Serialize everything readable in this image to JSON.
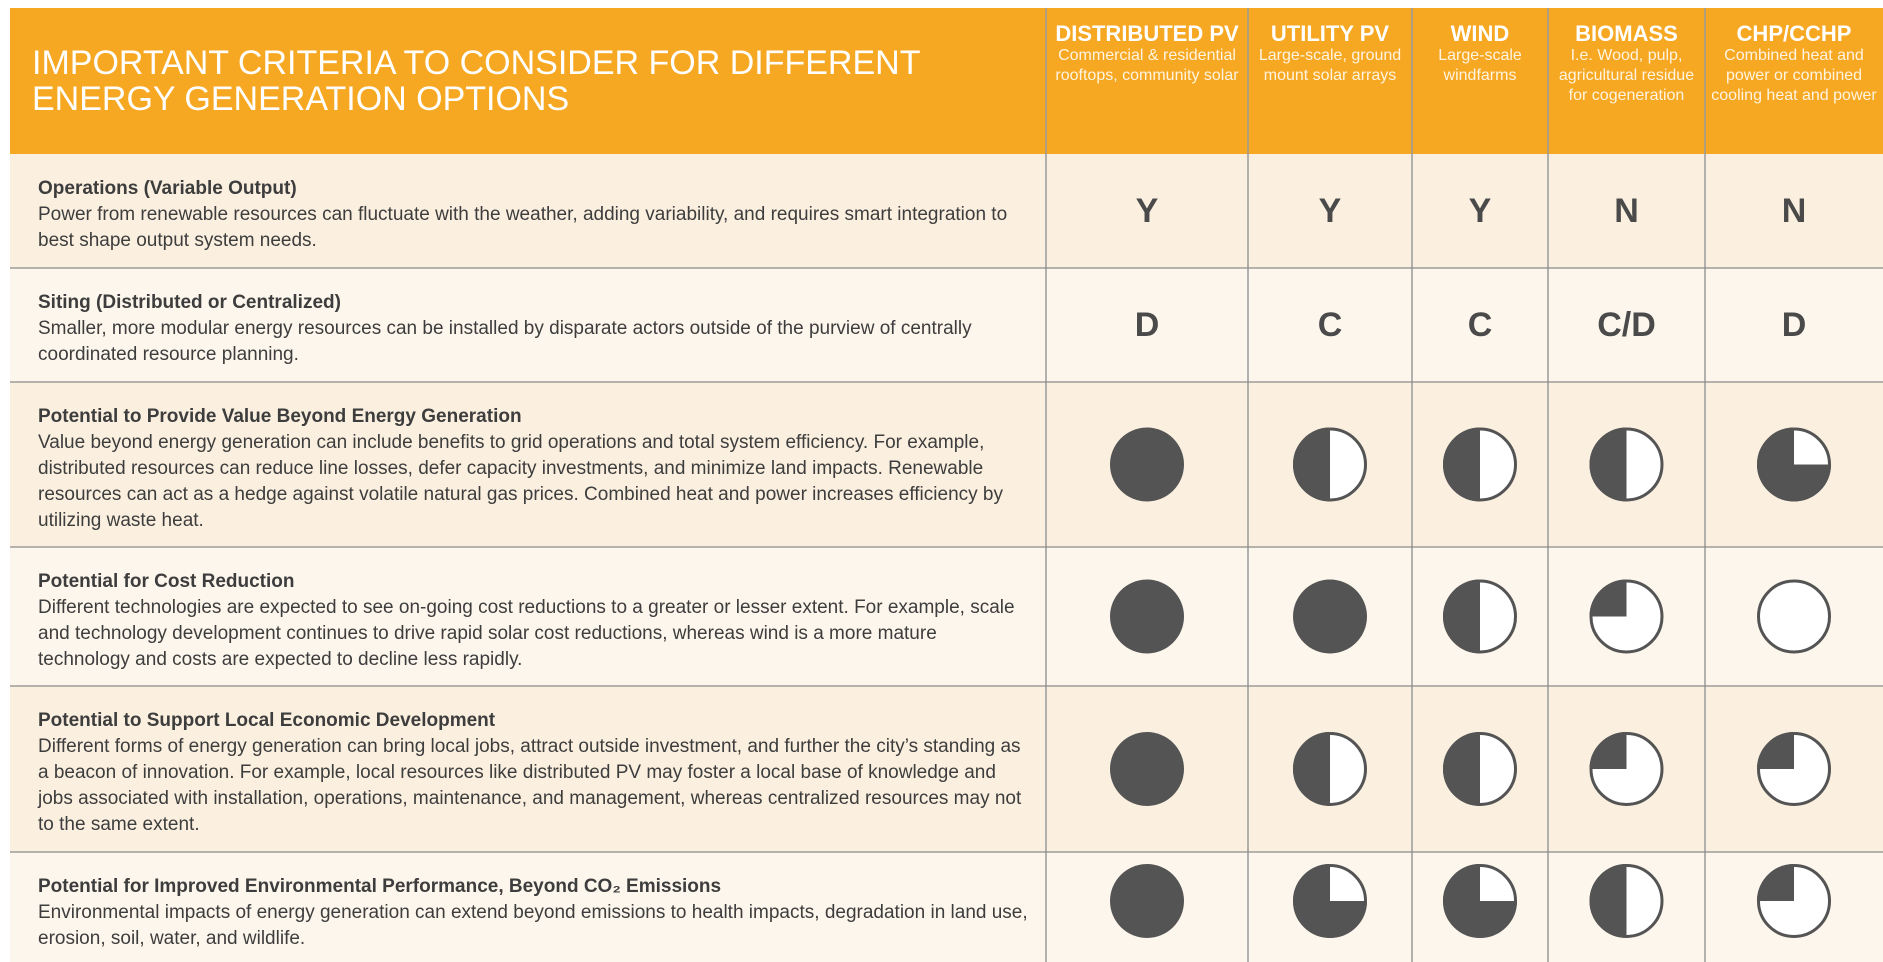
{
  "header": {
    "title": "IMPORTANT CRITERIA TO CONSIDER FOR DIFFERENT ENERGY GENERATION OPTIONS",
    "columns": [
      {
        "name": "DISTRIBUTED PV",
        "description": "Commercial & residential rooftops, community solar"
      },
      {
        "name": "UTILITY PV",
        "description": "Large-scale, ground mount solar arrays"
      },
      {
        "name": "WIND",
        "description": "Large-scale windfarms"
      },
      {
        "name": "BIOMASS",
        "description": "I.e. Wood, pulp, agricultural residue for cogeneration"
      },
      {
        "name": "CHP/CCHP",
        "description": "Combined heat and power or combined cooling heat and power"
      }
    ]
  },
  "table": {
    "rows": [
      {
        "title": "Operations (Variable Output)",
        "description": "Power from renewable resources can fluctuate with the weather, adding variability, and requires smart integration to best shape output system needs.",
        "cells": [
          "Y",
          "Y",
          "Y",
          "N",
          "N"
        ]
      },
      {
        "title": "Siting (Distributed or Centralized)",
        "description": "Smaller, more modular energy resources can be installed by disparate actors outside of the purview of centrally coordinated resource planning.",
        "cells": [
          "D",
          "C",
          "C",
          "C/D",
          "D"
        ]
      },
      {
        "title": "Potential to Provide Value Beyond Energy Generation",
        "description": "Value beyond energy generation can include benefits to grid operations and total system efficiency. For example, distributed resources can reduce line losses, defer capacity investments, and minimize land impacts. Renewable resources can act as a hedge against volatile natural gas prices. Combined heat and power increases efficiency by utilizing waste heat.",
        "cells": [
          1,
          0.5,
          0.5,
          0.5,
          0.75
        ]
      },
      {
        "title": "Potential for Cost Reduction",
        "description": "Different technologies are expected to see on-going cost reductions to a greater or lesser extent. For example, scale and technology development continues to drive rapid solar cost reductions, whereas wind is a more mature technology and costs are expected to decline less rapidly.",
        "cells": [
          1,
          1,
          0.5,
          0.25,
          0
        ]
      },
      {
        "title": "Potential to Support Local Economic Development",
        "description": "Different forms of energy generation can bring local jobs, attract outside investment, and further the city’s standing as a beacon of innovation. For example, local resources like distributed PV may foster a local base of knowledge and jobs associated with installation, operations, maintenance, and management, whereas centralized resources may not to the same extent.",
        "cells": [
          1,
          0.5,
          0.5,
          0.25,
          0.25
        ]
      },
      {
        "title": "Potential for Improved Environmental Performance, Beyond CO₂ Emissions",
        "description": "Environmental impacts of energy generation can extend beyond emissions to health impacts, degradation in land use, erosion, soil, water, and wildlife.",
        "cells": [
          1,
          0.75,
          0.75,
          0.5,
          0.25
        ]
      }
    ]
  }
}
